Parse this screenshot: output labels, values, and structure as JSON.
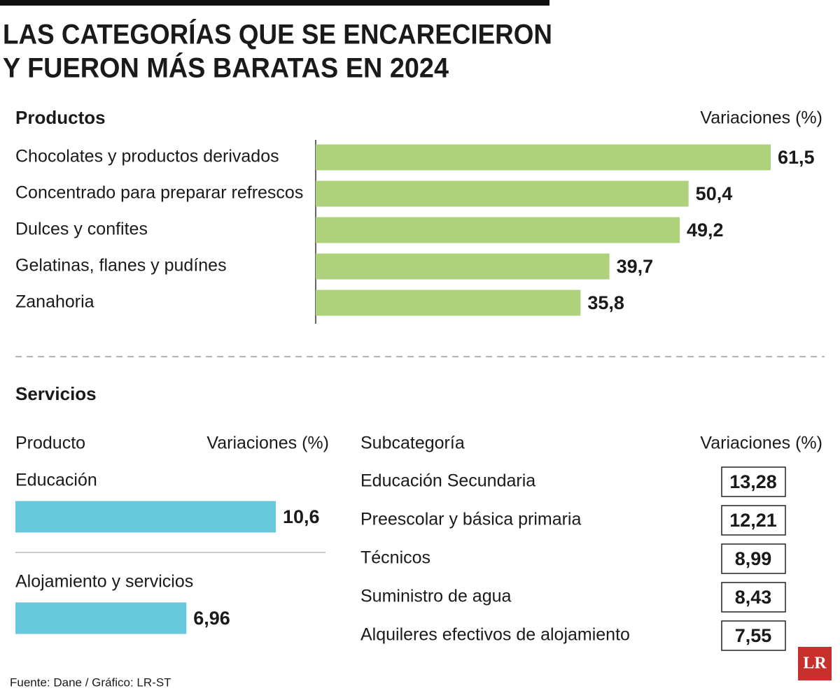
{
  "title_lines": [
    "LAS CATEGORÍAS QUE SE ENCARECIERON",
    "Y FUERON MÁS BARATAS EN 2024"
  ],
  "chart_data": [
    {
      "type": "bar",
      "orientation": "horizontal",
      "section": "Productos",
      "value_header": "Variaciones (%)",
      "categories": [
        "Chocolates y productos derivados",
        "Concentrado para preparar refrescos",
        "Dulces y confites",
        "Gelatinas, flanes y pudínes",
        "Zanahoria"
      ],
      "values": [
        61.5,
        50.4,
        49.2,
        39.7,
        35.8
      ],
      "value_labels": [
        "61,5",
        "50,4",
        "49,2",
        "39,7",
        "35,8"
      ],
      "color": "#aed17b"
    },
    {
      "type": "bar",
      "orientation": "horizontal",
      "section": "Servicios",
      "category_header": "Producto",
      "value_header": "Variaciones (%)",
      "categories": [
        "Educación",
        "Alojamiento y servicios"
      ],
      "values": [
        10.6,
        6.96
      ],
      "value_labels": [
        "10,6",
        "6,96"
      ],
      "color": "#66c8da"
    }
  ],
  "sub_table": {
    "headers": [
      "Subcategoría",
      "Variaciones (%)"
    ],
    "rows": [
      [
        "Educación Secundaria",
        "13,28"
      ],
      [
        "Preescolar y básica primaria",
        "12,21"
      ],
      [
        "Técnicos",
        "8,99"
      ],
      [
        "Suministro de agua",
        "8,43"
      ],
      [
        "Alquileres efectivos de alojamiento",
        "7,55"
      ]
    ]
  },
  "logo": "LR",
  "source": "Fuente: Dane / Gráfico: LR-ST"
}
